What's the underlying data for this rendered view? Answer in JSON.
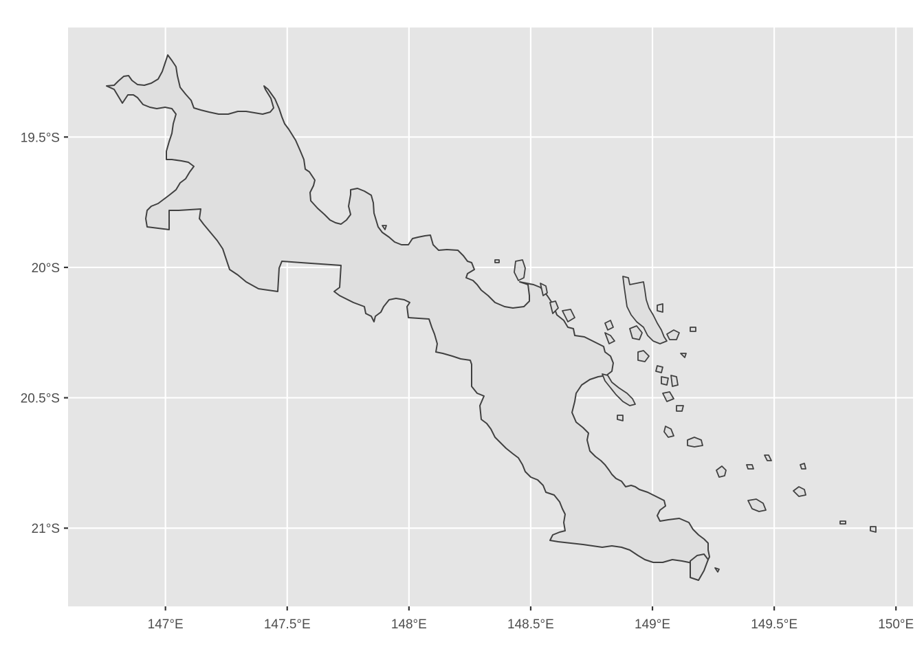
{
  "map": {
    "projection": "lon-lat",
    "xlim": [
      146.6,
      150.07
    ],
    "ylim": [
      -21.3,
      -19.08
    ],
    "background_color": "#e5e5e5",
    "grid_color": "#ffffff",
    "fill_color": "#dfdfdf",
    "outline_color": "#404040",
    "x_ticks": [
      {
        "value": 147.0,
        "label": "147°E"
      },
      {
        "value": 147.5,
        "label": "147.5°E"
      },
      {
        "value": 148.0,
        "label": "148°E"
      },
      {
        "value": 148.5,
        "label": "148.5°E"
      },
      {
        "value": 149.0,
        "label": "149°E"
      },
      {
        "value": 149.5,
        "label": "149.5°E"
      },
      {
        "value": 150.0,
        "label": "150°E"
      }
    ],
    "y_ticks": [
      {
        "value": -19.5,
        "label": "19.5°S"
      },
      {
        "value": -20.0,
        "label": "20°S"
      },
      {
        "value": -20.5,
        "label": "20.5°S"
      },
      {
        "value": -21.0,
        "label": "21°S"
      }
    ]
  }
}
